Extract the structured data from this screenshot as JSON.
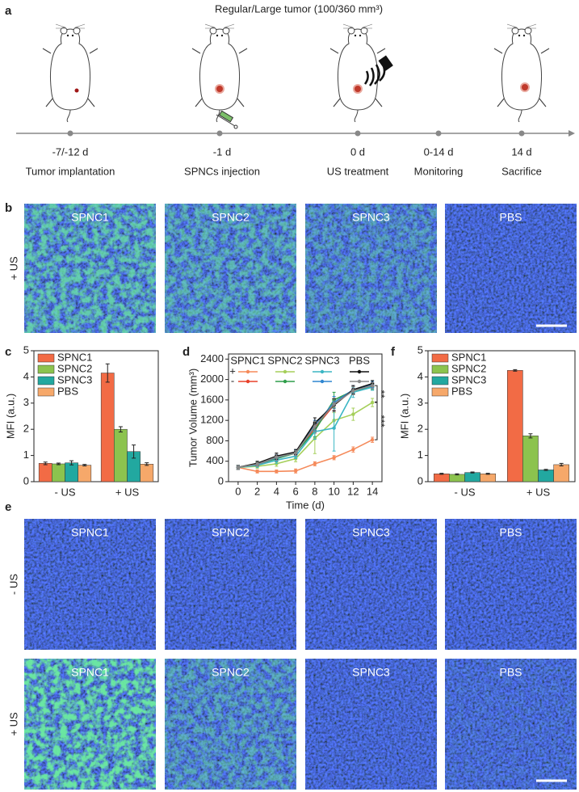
{
  "panel_labels": [
    "a",
    "b",
    "c",
    "d",
    "e",
    "f"
  ],
  "timeline": {
    "title": "Regular/Large tumor (100/360 mm³)",
    "events": [
      {
        "time": "-7/-12 d",
        "label": "Tumor implantation"
      },
      {
        "time": "-1 d",
        "label": "SPNCs injection"
      },
      {
        "time": "0 d",
        "label": "US treatment"
      },
      {
        "time": "0-14 d",
        "label": "Monitoring"
      },
      {
        "time": "14 d",
        "label": "Sacrifice"
      }
    ]
  },
  "panel_b": {
    "row_label": "+ US",
    "columns": [
      "SPNC1",
      "SPNC2",
      "SPNC3",
      "PBS"
    ]
  },
  "panel_e": {
    "row_labels": [
      "- US",
      "+ US"
    ],
    "columns": [
      "SPNC1",
      "SPNC2",
      "SPNC3",
      "PBS"
    ]
  },
  "chart_data": [
    {
      "type": "bar",
      "ylabel": "MFI (a.u.)",
      "categories": [
        "- US",
        "+ US"
      ],
      "series": [
        {
          "name": "SPNC1",
          "color": "#f26b45",
          "values": [
            0.7,
            4.15
          ],
          "errors": [
            0.05,
            0.35
          ]
        },
        {
          "name": "SPNC2",
          "color": "#8cc34e",
          "values": [
            0.68,
            2.0
          ],
          "errors": [
            0.03,
            0.1
          ]
        },
        {
          "name": "SPNC3",
          "color": "#22a8a0",
          "values": [
            0.72,
            1.15
          ],
          "errors": [
            0.08,
            0.25
          ]
        },
        {
          "name": "PBS",
          "color": "#f6a86a",
          "values": [
            0.63,
            0.67
          ],
          "errors": [
            0.03,
            0.05
          ]
        }
      ],
      "ylim": [
        0,
        5
      ],
      "yticks": [
        0,
        1,
        2,
        3,
        4,
        5
      ]
    },
    {
      "type": "line",
      "ylabel": "Tumor Volume (mm³)",
      "xlabel": "Time (d)",
      "x": [
        0,
        2,
        4,
        6,
        8,
        10,
        12,
        14
      ],
      "xlim": [
        -1,
        15
      ],
      "xticks": [
        0,
        2,
        4,
        6,
        8,
        10,
        12,
        14
      ],
      "ylim": [
        0,
        2500
      ],
      "yticks": [
        0,
        400,
        800,
        1200,
        1600,
        2000,
        2400
      ],
      "conditions": [
        "+",
        "-"
      ],
      "series": [
        {
          "name": "SPNC1",
          "lines": [
            {
              "color": "#f58a5a",
              "values": [
                280,
                200,
                200,
                210,
                350,
                470,
                630,
                820
              ],
              "errors": [
                40,
                30,
                30,
                40,
                40,
                40,
                50,
                50
              ]
            },
            {
              "color": "#e8402a",
              "values": [
                280,
                330,
                460,
                560,
                1050,
                1500,
                1800,
                1880
              ],
              "errors": [
                40,
                40,
                60,
                50,
                100,
                120,
                80,
                60
              ]
            }
          ]
        },
        {
          "name": "SPNC2",
          "lines": [
            {
              "color": "#a5cf5a",
              "values": [
                280,
                300,
                350,
                450,
                850,
                1200,
                1320,
                1550
              ],
              "errors": [
                40,
                40,
                50,
                60,
                300,
                150,
                120,
                80
              ]
            },
            {
              "color": "#2e9e4a",
              "values": [
                280,
                350,
                450,
                560,
                1000,
                1600,
                1780,
                1860
              ],
              "errors": [
                40,
                40,
                60,
                50,
                120,
                150,
                80,
                60
              ]
            }
          ]
        },
        {
          "name": "SPNC3",
          "lines": [
            {
              "color": "#3bb6c4",
              "values": [
                280,
                320,
                420,
                500,
                980,
                1050,
                1750,
                1850
              ],
              "errors": [
                40,
                40,
                60,
                50,
                150,
                450,
                100,
                60
              ]
            },
            {
              "color": "#2f86d0",
              "values": [
                280,
                340,
                470,
                570,
                1100,
                1550,
                1800,
                1900
              ],
              "errors": [
                40,
                40,
                60,
                50,
                100,
                120,
                80,
                60
              ]
            }
          ]
        },
        {
          "name": "PBS",
          "lines": [
            {
              "color": "#111111",
              "values": [
                280,
                360,
                500,
                580,
                1150,
                1500,
                1800,
                1920
              ],
              "errors": [
                40,
                40,
                60,
                50,
                100,
                120,
                80,
                60
              ]
            },
            {
              "color": "#888888",
              "values": [
                280,
                340,
                480,
                560,
                1080,
                1520,
                1780,
                1880
              ],
              "errors": [
                40,
                40,
                60,
                50,
                100,
                120,
                80,
                60
              ]
            }
          ]
        }
      ],
      "annotations": [
        "**",
        "***"
      ]
    },
    {
      "type": "bar",
      "ylabel": "MFI (a.u.)",
      "categories": [
        "- US",
        "+ US"
      ],
      "series": [
        {
          "name": "SPNC1",
          "color": "#f26b45",
          "values": [
            0.3,
            4.25
          ],
          "errors": [
            0.02,
            0.03
          ]
        },
        {
          "name": "SPNC2",
          "color": "#8cc34e",
          "values": [
            0.28,
            1.75
          ],
          "errors": [
            0.02,
            0.08
          ]
        },
        {
          "name": "SPNC3",
          "color": "#22a8a0",
          "values": [
            0.35,
            0.45
          ],
          "errors": [
            0.02,
            0.02
          ]
        },
        {
          "name": "PBS",
          "color": "#f6a86a",
          "values": [
            0.3,
            0.65
          ],
          "errors": [
            0.02,
            0.05
          ]
        }
      ],
      "ylim": [
        0,
        5
      ],
      "yticks": [
        0,
        1,
        2,
        3,
        4,
        5
      ]
    }
  ]
}
